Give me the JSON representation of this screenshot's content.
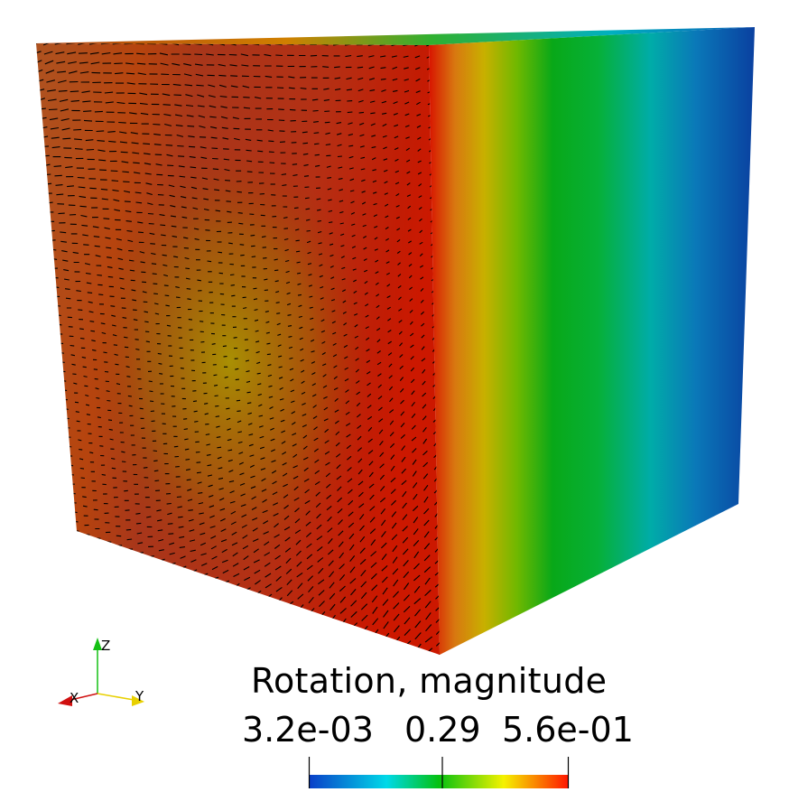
{
  "legend": {
    "title": "Rotation, magnitude",
    "min_label": "3.2e-03",
    "mid_label": "0.29",
    "max_label": "5.6e-01",
    "min_value": 0.0032,
    "mid_value": 0.29,
    "max_value": 0.56,
    "colormap": [
      "#0a3ec8",
      "#00d9e8",
      "#04c110",
      "#f5f200",
      "#ff1400"
    ]
  },
  "axes_triad": {
    "x_label": "X",
    "y_label": "Y",
    "z_label": "Z",
    "x_color": "#d01010",
    "y_color": "#e8d000",
    "z_color": "#14c014"
  },
  "cube_colors": {
    "front_red": "#b02000",
    "front_olive": "#9a9000",
    "side_green": "#0aa00a",
    "side_cyan": "#00b0b8",
    "side_blue": "#0a4aa8"
  }
}
